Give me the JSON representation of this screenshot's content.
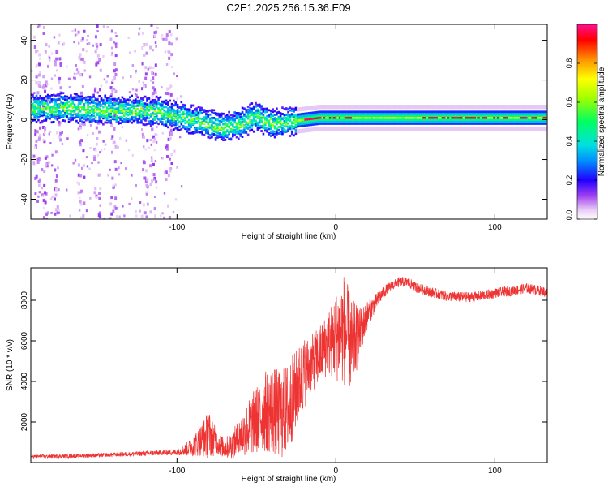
{
  "title": "C2E1.2025.256.15.36.E09",
  "colors": {
    "snr_line": "#ee3333",
    "axis": "#000000",
    "background": "#ffffff"
  },
  "chart_data": [
    {
      "type": "heatmap",
      "title": "C2E1.2025.256.15.36.E09",
      "xlabel": "Height of straight line (km)",
      "ylabel": "Frequency (Hz)",
      "xlim": [
        -192,
        133
      ],
      "ylim": [
        -50,
        48
      ],
      "x_ticks": [
        -100,
        0,
        100
      ],
      "x_tick_labels": [
        "-100",
        "0",
        "100"
      ],
      "y_ticks": [
        -40,
        -20,
        0,
        20,
        40
      ],
      "y_tick_labels": [
        "-40",
        "-20",
        "0",
        "20",
        "40"
      ],
      "colorbar": {
        "label": "Normalized spectral amplitude",
        "range": [
          0,
          1
        ],
        "ticks": [
          0.0,
          0.2,
          0.4,
          0.6,
          0.8
        ],
        "tick_labels": [
          "0.0",
          "0.2",
          "0.4",
          "0.6",
          "0.8"
        ]
      },
      "ridge": {
        "x": [
          -192,
          -170,
          -150,
          -130,
          -110,
          -100,
          -90,
          -80,
          -70,
          -60,
          -50,
          -40,
          -30,
          -20,
          -10,
          0,
          20,
          40,
          60,
          80,
          100,
          120,
          133
        ],
        "freq": [
          6,
          6,
          5,
          5,
          4,
          2,
          0,
          -2,
          -4,
          -2,
          2,
          -2,
          -1,
          0,
          1,
          1,
          1,
          1,
          1,
          1,
          1,
          1,
          1
        ]
      },
      "noise_columns_x": [
        -188,
        -183,
        -175,
        -160,
        -150,
        -140,
        -120,
        -115,
        -105
      ]
    },
    {
      "type": "line",
      "xlabel": "Height of straight line (km)",
      "ylabel": "SNR (10 * v/v)",
      "xlim": [
        -192,
        133
      ],
      "ylim": [
        0,
        9600
      ],
      "x_ticks": [
        -100,
        0,
        100
      ],
      "x_tick_labels": [
        "-100",
        "0",
        "100"
      ],
      "y_ticks": [
        2000,
        4000,
        6000,
        8000
      ],
      "y_tick_labels": [
        "2000",
        "4000",
        "6000",
        "8000"
      ],
      "series": [
        {
          "name": "SNR",
          "x": [
            -192,
            -170,
            -150,
            -130,
            -110,
            -100,
            -95,
            -90,
            -85,
            -80,
            -75,
            -70,
            -65,
            -60,
            -55,
            -50,
            -45,
            -40,
            -35,
            -30,
            -25,
            -20,
            -15,
            -10,
            -5,
            0,
            5,
            10,
            15,
            20,
            25,
            30,
            35,
            40,
            45,
            50,
            60,
            70,
            80,
            90,
            100,
            110,
            120,
            130,
            133
          ],
          "base": [
            300,
            320,
            360,
            420,
            480,
            520,
            620,
            800,
            1100,
            1400,
            1000,
            700,
            900,
            1300,
            1700,
            2100,
            2500,
            2600,
            2300,
            2700,
            3600,
            4400,
            4900,
            5300,
            5900,
            6200,
            6600,
            5700,
            6400,
            7300,
            7900,
            8400,
            8700,
            8900,
            8900,
            8650,
            8400,
            8200,
            8150,
            8200,
            8350,
            8450,
            8600,
            8450,
            8350
          ],
          "noise": [
            80,
            90,
            100,
            110,
            130,
            150,
            300,
            500,
            800,
            1200,
            600,
            500,
            700,
            1000,
            1400,
            1700,
            2000,
            2200,
            2200,
            2300,
            2000,
            1800,
            1400,
            1500,
            1600,
            2200,
            2800,
            2400,
            1200,
            700,
            400,
            300,
            250,
            250,
            250,
            250,
            250,
            250,
            250,
            250,
            250,
            250,
            250,
            250,
            250
          ]
        }
      ]
    }
  ]
}
